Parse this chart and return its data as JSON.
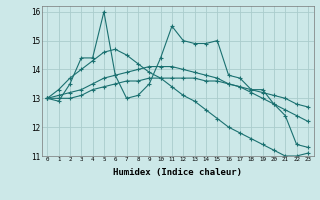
{
  "xlabel": "Humidex (Indice chaleur)",
  "ylabel": "",
  "xlim": [
    -0.5,
    23.5
  ],
  "ylim": [
    11,
    16.2
  ],
  "yticks": [
    11,
    12,
    13,
    14,
    15,
    16
  ],
  "xticks": [
    0,
    1,
    2,
    3,
    4,
    5,
    6,
    7,
    8,
    9,
    10,
    11,
    12,
    13,
    14,
    15,
    16,
    17,
    18,
    19,
    20,
    21,
    22,
    23
  ],
  "bg_color": "#cce8e8",
  "grid_color": "#aacccc",
  "line_color": "#1a7070",
  "series": [
    [
      13.0,
      12.9,
      13.5,
      14.4,
      14.4,
      16.0,
      13.8,
      13.0,
      13.1,
      13.5,
      14.4,
      15.5,
      15.0,
      14.9,
      14.9,
      15.0,
      13.8,
      13.7,
      13.3,
      13.3,
      12.8,
      12.4,
      11.4,
      11.3
    ],
    [
      13.0,
      13.0,
      13.0,
      13.1,
      13.3,
      13.4,
      13.5,
      13.6,
      13.6,
      13.7,
      13.7,
      13.7,
      13.7,
      13.7,
      13.6,
      13.6,
      13.5,
      13.4,
      13.3,
      13.2,
      13.1,
      13.0,
      12.8,
      12.7
    ],
    [
      13.0,
      13.1,
      13.2,
      13.3,
      13.5,
      13.7,
      13.8,
      13.9,
      14.0,
      14.1,
      14.1,
      14.1,
      14.0,
      13.9,
      13.8,
      13.7,
      13.5,
      13.4,
      13.2,
      13.0,
      12.8,
      12.6,
      12.4,
      12.2
    ],
    [
      13.0,
      13.3,
      13.7,
      14.0,
      14.3,
      14.6,
      14.7,
      14.5,
      14.2,
      13.9,
      13.7,
      13.4,
      13.1,
      12.9,
      12.6,
      12.3,
      12.0,
      11.8,
      11.6,
      11.4,
      11.2,
      11.0,
      11.0,
      11.1
    ]
  ],
  "markers": [
    "+",
    "+",
    "+",
    "+"
  ],
  "linewidth": 0.8,
  "markersize": 2.5
}
